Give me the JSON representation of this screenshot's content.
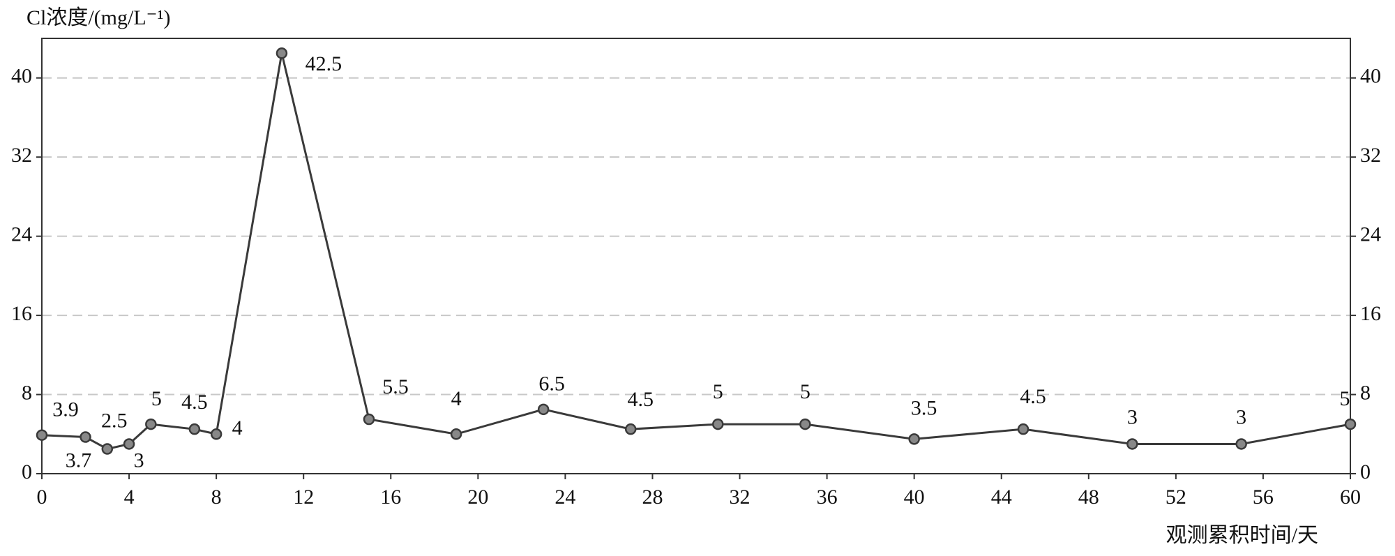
{
  "chart_data": {
    "type": "line",
    "y_label": "Cl浓度/(mg/L⁻¹)",
    "x_label": "观测累积时间/天",
    "x": [
      0,
      2,
      3,
      4,
      5,
      7,
      8,
      11,
      15,
      19,
      23,
      27,
      31,
      35,
      40,
      45,
      50,
      55,
      60
    ],
    "series": [
      {
        "color": "#3a3a3a",
        "values": [
          3.9,
          3.7,
          2.5,
          3,
          5,
          4.5,
          4,
          42.5,
          5.5,
          4,
          6.5,
          4.5,
          5,
          5,
          3.5,
          4.5,
          3,
          3,
          5
        ]
      }
    ],
    "xlim": [
      0,
      60
    ],
    "xticks": [
      0,
      4,
      8,
      12,
      16,
      20,
      24,
      28,
      32,
      36,
      40,
      44,
      48,
      52,
      56,
      60
    ],
    "ylim": [
      0,
      44
    ],
    "yticks": [
      0,
      8,
      16,
      24,
      32,
      40
    ],
    "grid": true
  }
}
